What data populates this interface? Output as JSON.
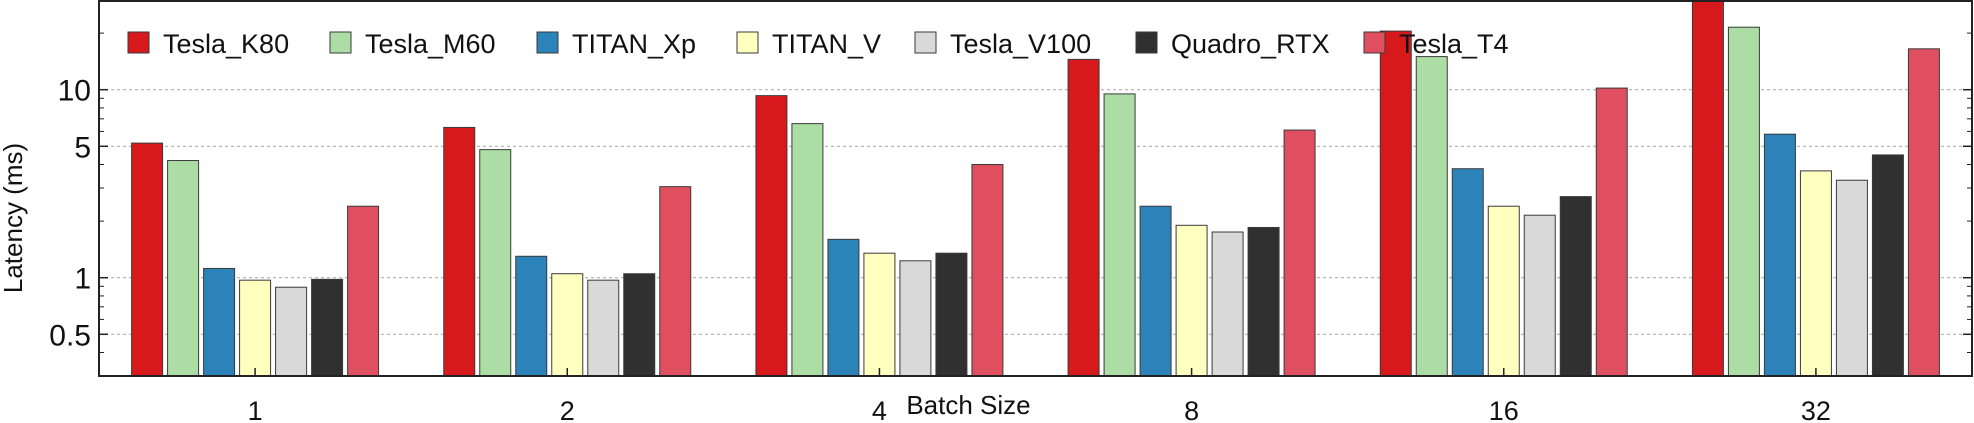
{
  "chart_data": {
    "type": "bar",
    "xlabel": "Batch Size",
    "ylabel": "Latency (ms)",
    "yscale": "log",
    "ylim": [
      0.3,
      30
    ],
    "yticks": [
      0.5,
      1,
      5,
      10
    ],
    "ytick_labels": [
      "0.5",
      "1",
      "5",
      "10"
    ],
    "grid": true,
    "legend_position": "top",
    "categories": [
      "1",
      "2",
      "4",
      "8",
      "16",
      "32"
    ],
    "series": [
      {
        "name": "Tesla_K80",
        "color": "#d7191c",
        "values": [
          5.2,
          6.3,
          9.3,
          14.5,
          20.5,
          30
        ]
      },
      {
        "name": "Tesla_M60",
        "color": "#abdda4",
        "values": [
          4.2,
          4.8,
          6.6,
          9.5,
          15.0,
          21.5
        ]
      },
      {
        "name": "TITAN_Xp",
        "color": "#2b83ba",
        "values": [
          1.12,
          1.3,
          1.6,
          2.4,
          3.8,
          5.8
        ]
      },
      {
        "name": "TITAN_V",
        "color": "#ffffbf",
        "values": [
          0.97,
          1.05,
          1.35,
          1.9,
          2.4,
          3.7
        ]
      },
      {
        "name": "Tesla_V100",
        "color": "#d9d9d9",
        "values": [
          0.89,
          0.97,
          1.23,
          1.75,
          2.15,
          3.3
        ]
      },
      {
        "name": "Quadro_RTX",
        "color": "#303030",
        "values": [
          0.98,
          1.05,
          1.35,
          1.85,
          2.7,
          4.5
        ]
      },
      {
        "name": "Tesla_T4",
        "color": "#df4f5f",
        "values": [
          2.4,
          3.05,
          4.0,
          6.1,
          10.2,
          16.5
        ]
      }
    ]
  }
}
